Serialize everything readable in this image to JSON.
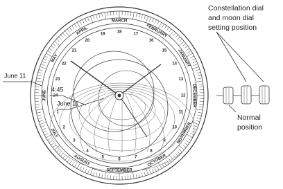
{
  "dial": {
    "months": [
      "MARCH",
      "APRIL",
      "MAY",
      "JUNE",
      "JULY",
      "AUGUST",
      "SEPTEMBER",
      "OCTOBER",
      "NOVEMBER",
      "DECEMBER",
      "JANUARY",
      "FEBRUARY"
    ],
    "hours": [
      "1",
      "2",
      "3",
      "4",
      "5",
      "6",
      "7",
      "8",
      "9",
      "10",
      "11",
      "12",
      "13",
      "14",
      "15",
      "16",
      "17",
      "18",
      "19",
      "20",
      "21",
      "22",
      "23",
      "24"
    ]
  },
  "left_labels": {
    "date_outer": "June 11",
    "time": "4:45",
    "date_inner": "June 11"
  },
  "crown_setting_label": {
    "lines": [
      "Constellation dial",
      "and moon dial",
      "setting position"
    ]
  },
  "crown_normal_label": {
    "lines": [
      "Normal",
      "position"
    ]
  }
}
